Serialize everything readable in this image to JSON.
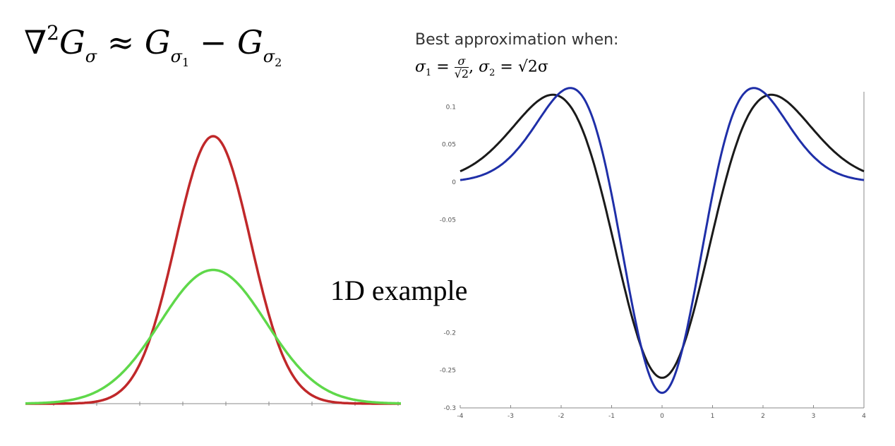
{
  "formula": {
    "nabla": "∇",
    "sq": "2",
    "G": "G",
    "sigma": "σ",
    "approx": "≈",
    "s1": "1",
    "minus": "−",
    "s2": "2"
  },
  "best_label": "Best approximation when:",
  "condition": {
    "s1": "1",
    "eq1": " = ",
    "num": "σ",
    "den": "√2",
    "comma": ", ",
    "s2": "2",
    "eq2": " = √2σ"
  },
  "caption": "1D example",
  "colors": {
    "red": "#c0282a",
    "green": "#5fd84a",
    "black": "#1a1a1a",
    "blue": "#1f2fa8",
    "axis": "#888888"
  },
  "chart_data": [
    {
      "type": "line",
      "title": "",
      "xlim": [
        -5,
        5
      ],
      "ylim": [
        0,
        1
      ],
      "series": [
        {
          "color": "red",
          "sigma": 1,
          "peak": 0.92
        },
        {
          "color": "green",
          "sigma": 1.414,
          "peak": 0.46
        }
      ]
    },
    {
      "type": "line",
      "title": "",
      "xlim": [
        -4,
        4
      ],
      "ylim": [
        -0.3,
        0.12
      ],
      "xticks": [
        "-4",
        "-3",
        "-2",
        "-1",
        "0",
        "1",
        "2",
        "3",
        "4"
      ],
      "yticks": [
        "0.1",
        "0.05",
        "0",
        "-0.05",
        "-0.2",
        "-0.25",
        "-0.3"
      ],
      "series": [
        {
          "color": "black",
          "min_at_0": -0.26,
          "max_at_pm2": 0.115
        },
        {
          "color": "blue",
          "min_at_0": -0.28,
          "max_at_pm1_6": 0.105
        }
      ]
    }
  ]
}
